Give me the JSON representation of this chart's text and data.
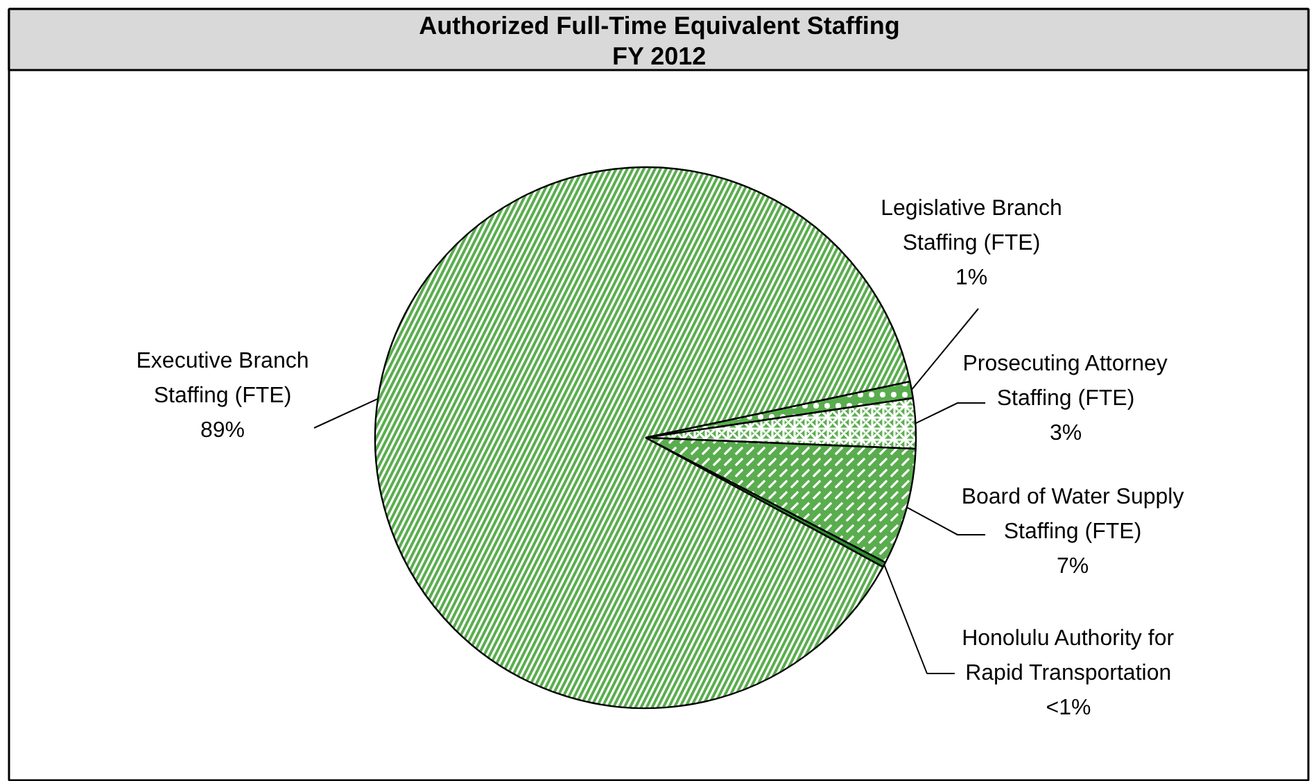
{
  "chart_data": {
    "type": "pie",
    "title": "Authorized Full-Time Equivalent Staffing\nFY 2012",
    "categories": [
      "Legislative Branch\nStaffing (FTE)",
      "Prosecuting Attorney\nStaffing (FTE)",
      "Board of Water Supply\nStaffing (FTE)",
      "Honolulu Authority for\nRapid Transportation",
      "Executive Branch\nStaffing (FTE)"
    ],
    "values": [
      1,
      3,
      7,
      0.3,
      89
    ],
    "value_labels": [
      "1%",
      "3%",
      "7%",
      "<1%",
      "89%"
    ],
    "colors": [
      "#5aad4e",
      "#5aad4e",
      "#5aad4e",
      "#2e8b2e",
      "#5aad4e"
    ]
  }
}
